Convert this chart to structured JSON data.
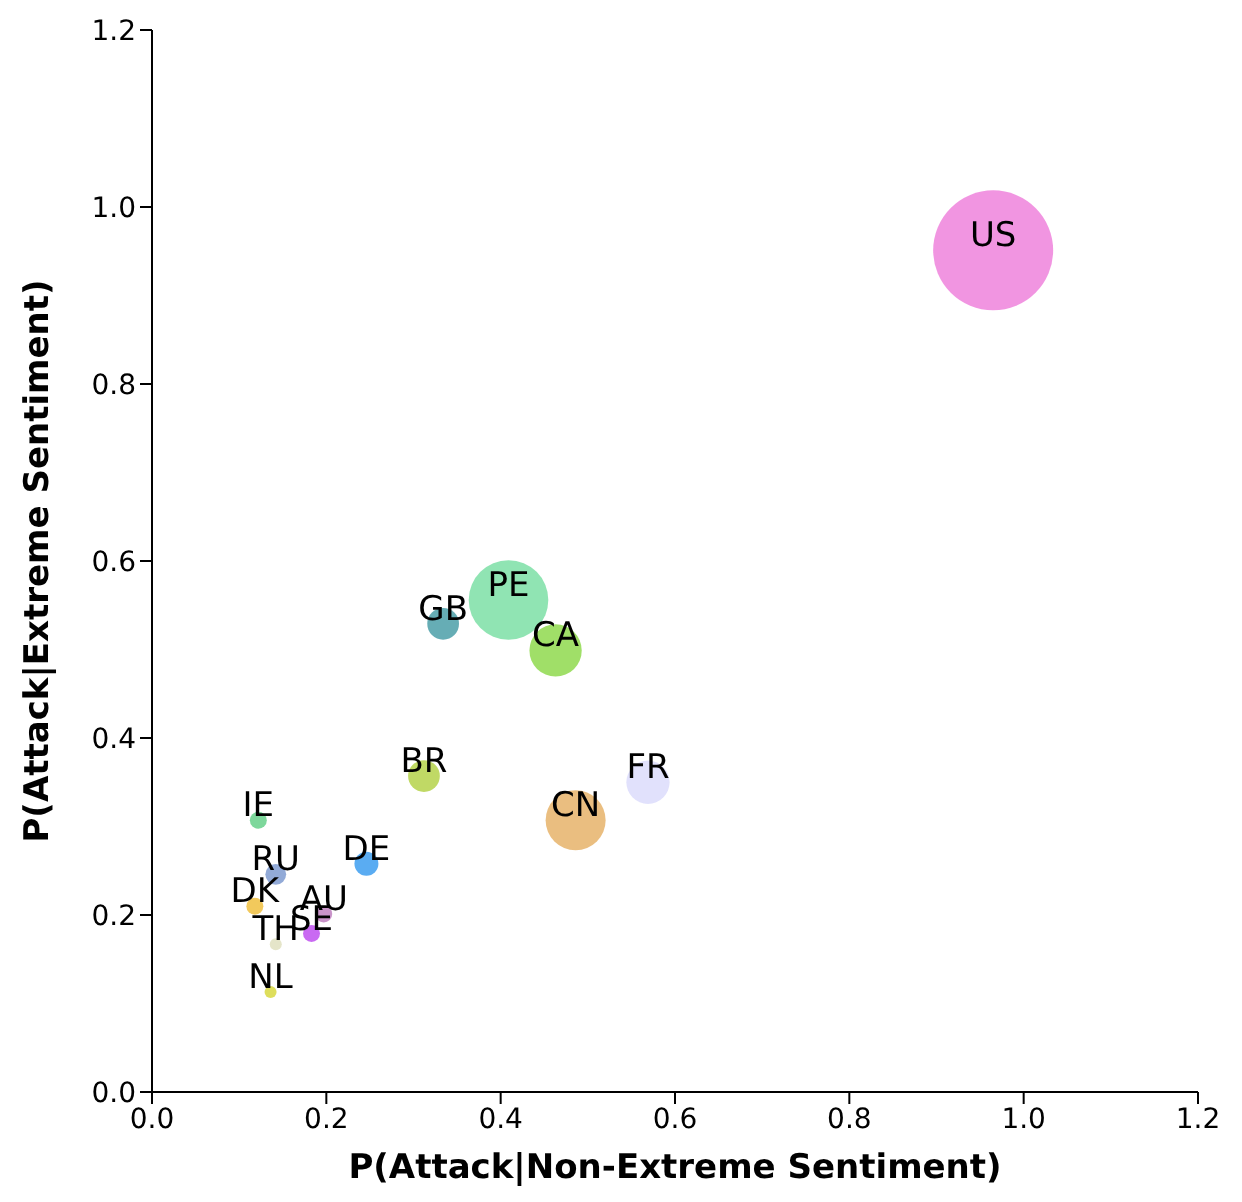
{
  "chart_data": {
    "type": "bubble",
    "xlabel": "P(Attack|Non-Extreme Sentiment)",
    "ylabel": "P(Attack|Extreme Sentiment)",
    "xlim": [
      0,
      1.2
    ],
    "ylim": [
      0,
      1.2
    ],
    "xticks": [
      {
        "value": 0,
        "label": "0.0"
      },
      {
        "value": 0.2,
        "label": "0.2"
      },
      {
        "value": 0.4,
        "label": "0.4"
      },
      {
        "value": 0.6,
        "label": "0.6"
      },
      {
        "value": 0.8,
        "label": "0.8"
      },
      {
        "value": 1,
        "label": "1.0"
      },
      {
        "value": 1.2,
        "label": "1.2"
      }
    ],
    "yticks": [
      {
        "value": 0,
        "label": "0.0"
      },
      {
        "value": 0.2,
        "label": "0.2"
      },
      {
        "value": 0.4,
        "label": "0.4"
      },
      {
        "value": 0.6,
        "label": "0.6"
      },
      {
        "value": 0.8,
        "label": "0.8"
      },
      {
        "value": 1,
        "label": "1.0"
      },
      {
        "value": 1.2,
        "label": "1.2"
      }
    ],
    "grid": false,
    "legend": false,
    "series": [
      {
        "name": "US",
        "color": "#ee82dc",
        "x": [
          0.965
        ],
        "values": [
          0.951
        ],
        "sizes": [
          1
        ]
      },
      {
        "name": "PE",
        "color": "#7ddfa6",
        "x": [
          0.409
        ],
        "values": [
          0.556
        ],
        "sizes": [
          0.44
        ]
      },
      {
        "name": "CA",
        "color": "#8fd94e",
        "x": [
          0.463
        ],
        "values": [
          0.499
        ],
        "sizes": [
          0.19
        ]
      },
      {
        "name": "GB",
        "color": "#4b9fa8",
        "x": [
          0.334
        ],
        "values": [
          0.529
        ],
        "sizes": [
          0.07
        ]
      },
      {
        "name": "BR",
        "color": "#b5d24a",
        "x": [
          0.312
        ],
        "values": [
          0.357
        ],
        "sizes": [
          0.07
        ]
      },
      {
        "name": "CN",
        "color": "#e6b36a",
        "x": [
          0.486
        ],
        "values": [
          0.307
        ],
        "sizes": [
          0.25
        ]
      },
      {
        "name": "FR",
        "color": "#dcdcfc",
        "x": [
          0.569
        ],
        "values": [
          0.35
        ],
        "sizes": [
          0.13
        ]
      },
      {
        "name": "IE",
        "color": "#66d08a",
        "x": [
          0.122
        ],
        "values": [
          0.307
        ],
        "sizes": [
          0.02
        ]
      },
      {
        "name": "RU",
        "color": "#7f9bd0",
        "x": [
          0.142
        ],
        "values": [
          0.246
        ],
        "sizes": [
          0.03
        ]
      },
      {
        "name": "DE",
        "color": "#3d9ef0",
        "x": [
          0.246
        ],
        "values": [
          0.258
        ],
        "sizes": [
          0.04
        ]
      },
      {
        "name": "DK",
        "color": "#f0c040",
        "x": [
          0.118
        ],
        "values": [
          0.21
        ],
        "sizes": [
          0.02
        ]
      },
      {
        "name": "AU",
        "color": "#c080c0",
        "x": [
          0.197
        ],
        "values": [
          0.201
        ],
        "sizes": [
          0.02
        ]
      },
      {
        "name": "SE",
        "color": "#c050f0",
        "x": [
          0.183
        ],
        "values": [
          0.179
        ],
        "sizes": [
          0.02
        ]
      },
      {
        "name": "TH",
        "color": "#e0e0c0",
        "x": [
          0.142
        ],
        "values": [
          0.167
        ],
        "sizes": [
          0.01
        ]
      },
      {
        "name": "NL",
        "color": "#d8d840",
        "x": [
          0.136
        ],
        "values": [
          0.113
        ],
        "sizes": [
          0.01
        ]
      }
    ]
  }
}
